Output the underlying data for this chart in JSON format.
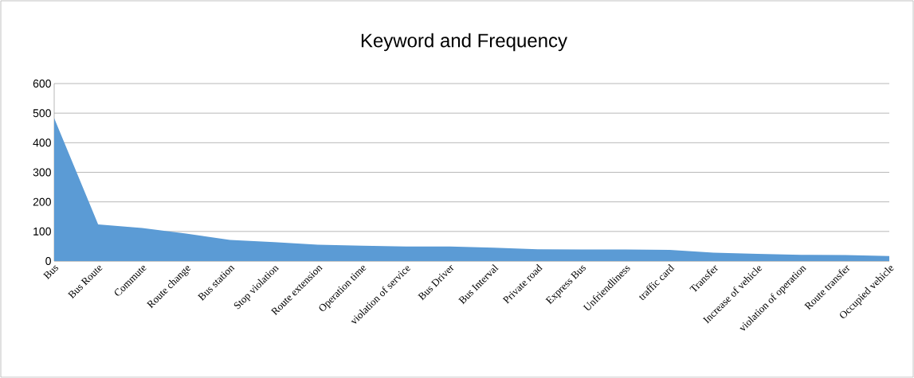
{
  "chart_data": {
    "type": "area",
    "title": "Keyword and Frequency",
    "categories": [
      "Bus",
      "Bus Route",
      "Commute",
      "Route change",
      "Bus station",
      "Stop violation",
      "Route extension",
      "Operation time",
      "violation of service",
      "Bus Driver",
      "Bus Interval",
      "Private road",
      "Express Bus",
      "Unfriendliness",
      "traffic card",
      "Transfer",
      "Increase of vehicle",
      "violation of operation",
      "Route transfer",
      "Occupied vehicle"
    ],
    "values": [
      483,
      124,
      112,
      93,
      71,
      64,
      55,
      52,
      49,
      49,
      45,
      40,
      39,
      39,
      38,
      28,
      24,
      21,
      20,
      17
    ],
    "color": "#5b9bd5",
    "ylim": [
      0,
      600
    ],
    "yticks": [
      0,
      100,
      200,
      300,
      400,
      500,
      600
    ],
    "grid": "y"
  }
}
